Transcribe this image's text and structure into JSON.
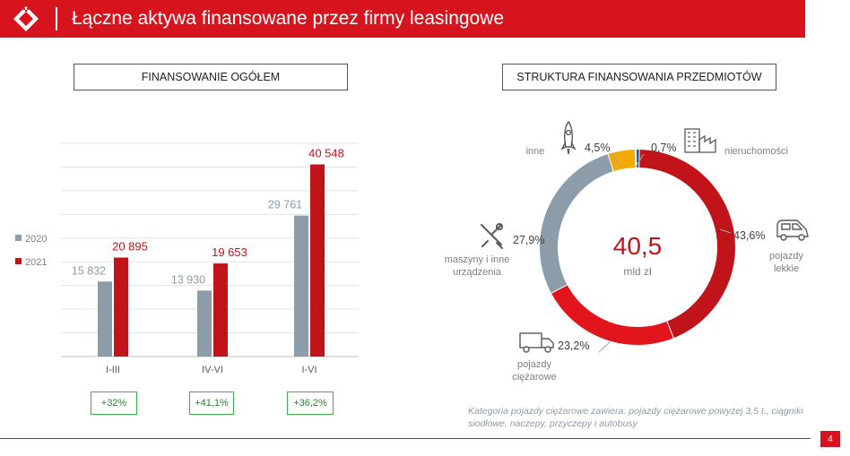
{
  "header": {
    "title": "Łączne aktywa finansowane przez firmy leasingowe"
  },
  "left_panel": {
    "title": "FINANSOWANIE OGÓŁEM",
    "growth_badges": [
      "+32%",
      "+41,1%",
      "+36,2%"
    ]
  },
  "right_panel": {
    "title": "STRUKTURA FINANSOWANIA PRZEDMIOTÓW"
  },
  "footnote": "Kategoria pojazdy ciężarowe zawiera: pojazdy ciężarowe powyżej 3,5 t., ciągniki siodłowe, naczepy, przyczepy i autobusy",
  "page_number": "4",
  "colors": {
    "brand_red": "#d7141d",
    "series_2020": "#8c9ca8",
    "series_2021": "#c0141a",
    "growth_border": "#3cb34a"
  },
  "chart_data": [
    {
      "type": "bar",
      "categories": [
        "I-III",
        "IV-VI",
        "I-VI"
      ],
      "series": [
        {
          "name": "2020",
          "values": [
            15832,
            13930,
            29761
          ],
          "labels": [
            "15 832",
            "13 930",
            "29 761"
          ]
        },
        {
          "name": "2021",
          "values": [
            20895,
            19653,
            40548
          ],
          "labels": [
            "20 895",
            "19 653",
            "40 548"
          ]
        }
      ],
      "ylim": [
        0,
        45000
      ],
      "grid": true,
      "legend": "left"
    },
    {
      "type": "pie",
      "variant": "donut",
      "center": {
        "value": "40,5",
        "unit": "mld zł"
      },
      "slices": [
        {
          "name": "pojazdy lekkie",
          "value": 43.6,
          "label": "43,6%",
          "color": "#c0141a",
          "icon": "car-icon"
        },
        {
          "name": "pojazdy ciężarowe",
          "value": 23.2,
          "label": "23,2%",
          "color": "#e2141c",
          "icon": "truck-icon"
        },
        {
          "name": "maszyny i inne urządzenia",
          "value": 27.9,
          "label": "27,9%",
          "color": "#8c9ca8",
          "icon": "tools-icon"
        },
        {
          "name": "inne",
          "value": 4.5,
          "label": "4,5%",
          "color": "#f2a900",
          "icon": "rocket-icon"
        },
        {
          "name": "nieruchomości",
          "value": 0.7,
          "label": "0,7%",
          "color": "#2f4f8f",
          "icon": "building-icon"
        }
      ]
    }
  ]
}
